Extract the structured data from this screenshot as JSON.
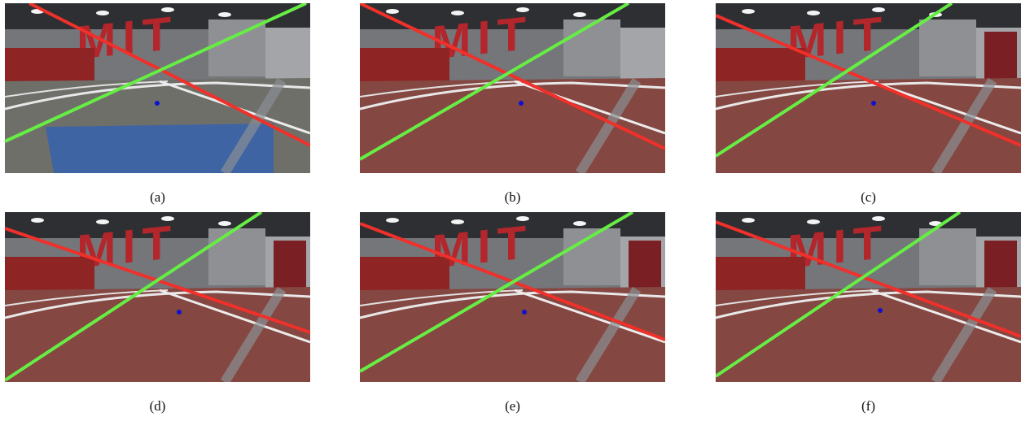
{
  "panels": [
    {
      "caption": "(a)",
      "sign": "MIT"
    },
    {
      "caption": "(b)",
      "sign": "MIT"
    },
    {
      "caption": "(c)",
      "sign": "MIT"
    },
    {
      "caption": "(d)",
      "sign": "MIT"
    },
    {
      "caption": "(e)",
      "sign": "MIT"
    },
    {
      "caption": "(f)",
      "sign": "MIT"
    }
  ]
}
